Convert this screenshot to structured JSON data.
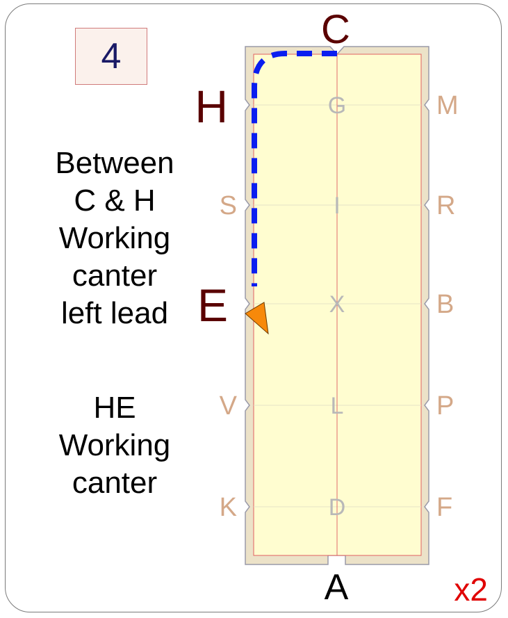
{
  "badge_number": "4",
  "description_1": [
    "Between",
    "C & H",
    "Working",
    "canter",
    "left lead"
  ],
  "description_2": [
    "HE",
    "Working",
    "canter"
  ],
  "multiplier": "x2",
  "markers": {
    "C": "C",
    "A": "A",
    "H": "H",
    "E": "E",
    "S": "S",
    "V": "V",
    "K": "K",
    "M": "M",
    "R": "R",
    "B": "B",
    "P": "P",
    "F": "F",
    "G": "G",
    "I": "I",
    "X": "X",
    "L": "L",
    "D": "D"
  },
  "colors": {
    "arena_border": "#ece2c8",
    "arena_surface": "#fffdd0",
    "path": "#0a1ef0",
    "arrow": "#f7890a",
    "highlight_letter": "#5a0000",
    "outer_letter": "#d4a888",
    "inner_letter": "#b8b8b8",
    "multiplier": "#e00000"
  }
}
